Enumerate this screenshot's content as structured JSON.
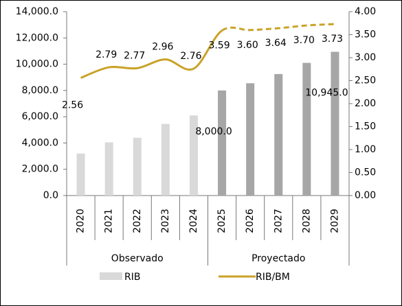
{
  "chart_data": {
    "type": "bar-line",
    "categories": [
      "2020",
      "2021",
      "2022",
      "2023",
      "2024",
      "2025",
      "2026",
      "2027",
      "2028",
      "2029"
    ],
    "groups": [
      {
        "label": "Observado",
        "count": 5,
        "bar_color": "#d9d9d9",
        "line_style": "solid"
      },
      {
        "label": "Proyectado",
        "count": 5,
        "bar_color": "#a6a6a6",
        "line_style": "dashed"
      }
    ],
    "series": [
      {
        "name": "RIB",
        "type": "bar",
        "color": "#d9d9d9",
        "values": [
          3200,
          4050,
          4400,
          5450,
          6100,
          8000,
          8550,
          9250,
          10100,
          10945
        ],
        "value_labels": [
          null,
          null,
          null,
          null,
          null,
          "8,000.0",
          null,
          null,
          null,
          "10,945.0"
        ]
      },
      {
        "name": "RIB/BM",
        "type": "line",
        "axis": "y2",
        "color": "#c9a227",
        "values": [
          2.56,
          2.79,
          2.77,
          2.96,
          2.76,
          3.59,
          3.6,
          3.64,
          3.7,
          3.73
        ],
        "value_labels": [
          "2.56",
          "2.79",
          "2.77",
          "2.96",
          "2.76",
          "3.59",
          "3.60",
          "3.64",
          "3.70",
          "3.73"
        ]
      }
    ],
    "ylim": [
      0,
      14000
    ],
    "yticks": [
      {
        "value": 0,
        "label": "0.0"
      },
      {
        "value": 2000,
        "label": "2,000.0"
      },
      {
        "value": 4000,
        "label": "4,000.0"
      },
      {
        "value": 6000,
        "label": "6,000.0"
      },
      {
        "value": 8000,
        "label": "8,000.0"
      },
      {
        "value": 10000,
        "label": "10,000.0"
      },
      {
        "value": 12000,
        "label": "12,000.0"
      },
      {
        "value": 14000,
        "label": "14,000.0"
      }
    ],
    "y2lim": [
      0,
      4
    ],
    "y2ticks": [
      {
        "value": 0,
        "label": "0.00"
      },
      {
        "value": 0.5,
        "label": "0.50"
      },
      {
        "value": 1,
        "label": "1.00"
      },
      {
        "value": 1.5,
        "label": "1.50"
      },
      {
        "value": 2,
        "label": "2.00"
      },
      {
        "value": 2.5,
        "label": "2.50"
      },
      {
        "value": 3,
        "label": "3.00"
      },
      {
        "value": 3.5,
        "label": "3.50"
      },
      {
        "value": 4,
        "label": "4.00"
      }
    ],
    "legend": "bottom"
  }
}
